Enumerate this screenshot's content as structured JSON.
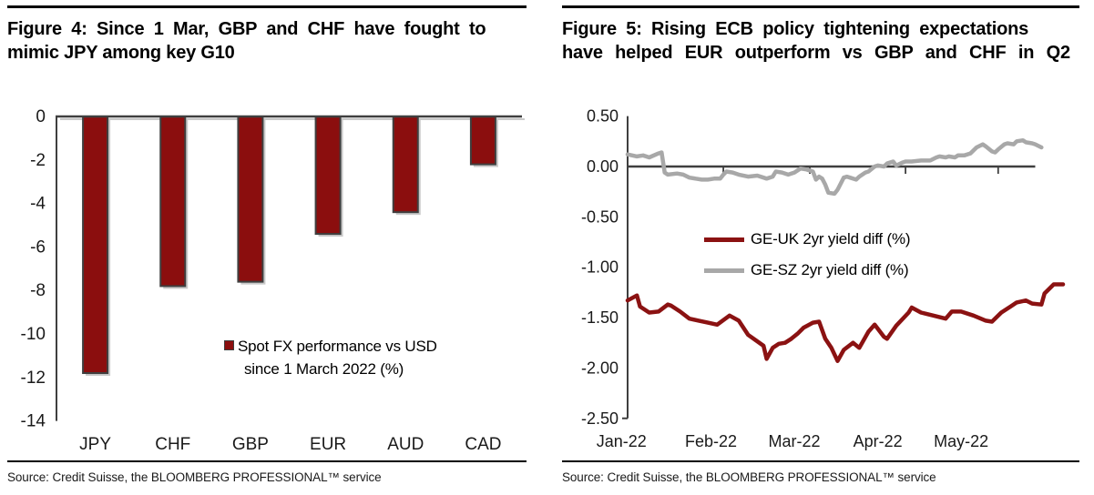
{
  "figure4": {
    "title_line1": "Figure 4: Since 1 Mar, GBP and CHF have fought to",
    "title_line2": "mimic JPY among key G10",
    "legend_line1": "Spot FX performance vs USD",
    "legend_line2": "since 1 March 2022 (%)",
    "source": "Source: Credit Suisse, the BLOOMBERG PROFESSIONAL™ service"
  },
  "figure5": {
    "title_line1": "Figure 5: Rising ECB policy tightening expectations",
    "title_line2": "have helped EUR outperform vs GBP and CHF in Q2",
    "legend_items": [
      {
        "label": "GE-UK 2yr yield diff (%)",
        "color": "#8B1212"
      },
      {
        "label": "GE-SZ 2yr yield diff (%)",
        "color": "#A8A8A8"
      }
    ],
    "source": "Source: Credit Suisse, the BLOOMBERG PROFESSIONAL™ service"
  },
  "colors": {
    "bar_fill": "#8B0E0E",
    "bar_border": "#3F3F3F",
    "axis": "#3F3F3F",
    "shadow": "#C9C9C9",
    "red_line": "#8B1212",
    "gray_line": "#A8A8A8"
  },
  "chart_data": [
    {
      "type": "bar",
      "figure": "Figure 4",
      "title": "Since 1 Mar, GBP and CHF have fought to mimic JPY among key G10",
      "legend": "Spot FX performance vs USD since 1 March 2022 (%)",
      "categories": [
        "JPY",
        "CHF",
        "GBP",
        "EUR",
        "AUD",
        "CAD"
      ],
      "values": [
        -11.8,
        -7.8,
        -7.6,
        -5.4,
        -4.4,
        -2.2
      ],
      "ylim": [
        -14,
        0
      ],
      "yticks": [
        0,
        -2,
        -4,
        -6,
        -8,
        -10,
        -12,
        -14
      ],
      "ytick_labels": [
        "0",
        "-2",
        "-4",
        "-6",
        "-8",
        "-10",
        "-12",
        "-14"
      ],
      "grid": false,
      "legend_position": "center-right"
    },
    {
      "type": "line",
      "figure": "Figure 5",
      "title": "Rising ECB policy tightening expectations have helped EUR outperform vs GBP and CHF in Q2",
      "x_unit": "days since 1 Jan 2022",
      "xlim": [
        0,
        141
      ],
      "ylim": [
        -2.5,
        0.5
      ],
      "yticks": [
        0.5,
        0.0,
        -0.5,
        -1.0,
        -1.5,
        -2.0,
        -2.5
      ],
      "ytick_labels": [
        "0.50",
        "0.00",
        "-0.50",
        "-1.00",
        "-1.50",
        "-2.00",
        "-2.50"
      ],
      "xtick_labels": [
        "Jan-22",
        "Feb-22",
        "Mar-22",
        "Apr-22",
        "May-22"
      ],
      "xlabel_center_days": [
        -2,
        27,
        54,
        81,
        108
      ],
      "month_tick_days": [
        31,
        59,
        90,
        120
      ],
      "zero_line_end_day": 132,
      "grid": false,
      "legend_position": "center-left",
      "series": [
        {
          "name": "GE-UK 2yr yield diff (%)",
          "color": "#8B1212",
          "x": [
            0,
            3,
            4,
            7,
            10,
            13,
            14,
            17,
            20,
            23,
            26,
            29,
            33,
            36,
            39,
            44,
            45,
            47,
            49,
            51,
            53,
            55,
            57,
            60,
            62,
            64,
            66,
            68,
            70,
            73,
            75,
            78,
            80,
            83,
            84,
            87,
            91,
            92,
            95,
            99,
            103,
            105,
            108,
            112,
            116,
            118,
            121,
            124,
            126,
            129,
            131,
            134,
            135,
            138,
            141
          ],
          "y": [
            -1.33,
            -1.28,
            -1.39,
            -1.45,
            -1.44,
            -1.37,
            -1.38,
            -1.44,
            -1.51,
            -1.53,
            -1.55,
            -1.57,
            -1.48,
            -1.53,
            -1.67,
            -1.78,
            -1.91,
            -1.8,
            -1.76,
            -1.75,
            -1.71,
            -1.66,
            -1.6,
            -1.55,
            -1.54,
            -1.71,
            -1.8,
            -1.93,
            -1.82,
            -1.75,
            -1.8,
            -1.64,
            -1.57,
            -1.69,
            -1.71,
            -1.58,
            -1.45,
            -1.4,
            -1.45,
            -1.48,
            -1.51,
            -1.44,
            -1.44,
            -1.48,
            -1.53,
            -1.54,
            -1.45,
            -1.39,
            -1.35,
            -1.33,
            -1.36,
            -1.37,
            -1.26,
            -1.17,
            -1.17
          ]
        },
        {
          "name": "GE-SZ 2yr yield diff (%)",
          "color": "#A8A8A8",
          "x": [
            0,
            3,
            5,
            7,
            10,
            11,
            12,
            13,
            16,
            18,
            20,
            22,
            24,
            26,
            28,
            30,
            31,
            32,
            34,
            36,
            39,
            42,
            44,
            45,
            47,
            48,
            50,
            52,
            54,
            56,
            58,
            60,
            61,
            62,
            63,
            64,
            65,
            67,
            68,
            70,
            71,
            72,
            74,
            75,
            77,
            78,
            80,
            81,
            83,
            84,
            86,
            87,
            89,
            90,
            92,
            95,
            98,
            100,
            101,
            103,
            104,
            106,
            107,
            109,
            111,
            113,
            115,
            116,
            118,
            119,
            120,
            122,
            123,
            125,
            126,
            128,
            129,
            131,
            132,
            134
          ],
          "y": [
            0.12,
            0.1,
            0.11,
            0.09,
            0.13,
            0.14,
            -0.06,
            -0.08,
            -0.07,
            -0.08,
            -0.11,
            -0.12,
            -0.13,
            -0.13,
            -0.12,
            -0.12,
            -0.08,
            -0.05,
            -0.06,
            -0.08,
            -0.1,
            -0.09,
            -0.11,
            -0.12,
            -0.1,
            -0.05,
            -0.06,
            -0.08,
            -0.06,
            -0.02,
            -0.03,
            -0.05,
            -0.13,
            -0.1,
            -0.12,
            -0.18,
            -0.26,
            -0.27,
            -0.23,
            -0.11,
            -0.1,
            -0.11,
            -0.13,
            -0.1,
            -0.06,
            -0.05,
            0.0,
            0.01,
            0.0,
            0.03,
            0.05,
            0.01,
            0.04,
            0.05,
            0.05,
            0.06,
            0.06,
            0.09,
            0.1,
            0.09,
            0.1,
            0.09,
            0.11,
            0.11,
            0.13,
            0.19,
            0.22,
            0.2,
            0.15,
            0.14,
            0.17,
            0.22,
            0.23,
            0.22,
            0.25,
            0.26,
            0.24,
            0.23,
            0.22,
            0.19
          ]
        }
      ]
    }
  ]
}
